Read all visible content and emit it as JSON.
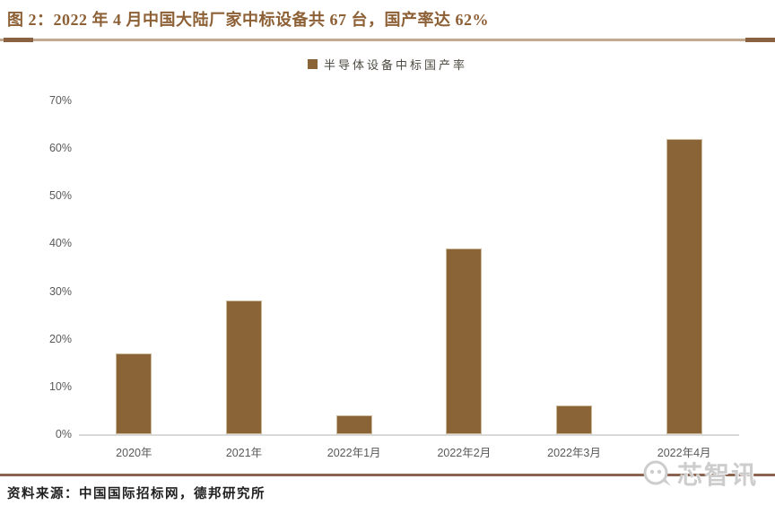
{
  "header": {
    "title": "图 2：2022 年 4 月中国大陆厂家中标设备共 67 台，国产率达 62%"
  },
  "chart_data": {
    "type": "bar",
    "title": "半导体设备中标国产率",
    "legend": [
      "半导体设备中标国产率"
    ],
    "legend_position": "top-center",
    "categories": [
      "2020年",
      "2021年",
      "2022年1月",
      "2022年2月",
      "2022年3月",
      "2022年4月"
    ],
    "values": [
      17,
      28,
      4,
      39,
      6,
      62
    ],
    "unit": "%",
    "xlabel": "",
    "ylabel": "",
    "ylim": [
      0,
      70
    ],
    "y_ticks": [
      0,
      10,
      20,
      30,
      40,
      50,
      60,
      70
    ],
    "y_tick_suffix": "%",
    "grid": false,
    "bar_color": "#8a6437"
  },
  "footer": {
    "source": "资料来源：中国国际招标网，德邦研究所"
  },
  "watermark": {
    "text": "芯智讯"
  },
  "colors": {
    "accent_brown": "#8d6036",
    "divider_light": "#c3a98e",
    "divider_dark": "#8a6141",
    "bottom_rule": "#8a6450",
    "axis_text": "#595959",
    "baseline": "#d9d9d9"
  }
}
